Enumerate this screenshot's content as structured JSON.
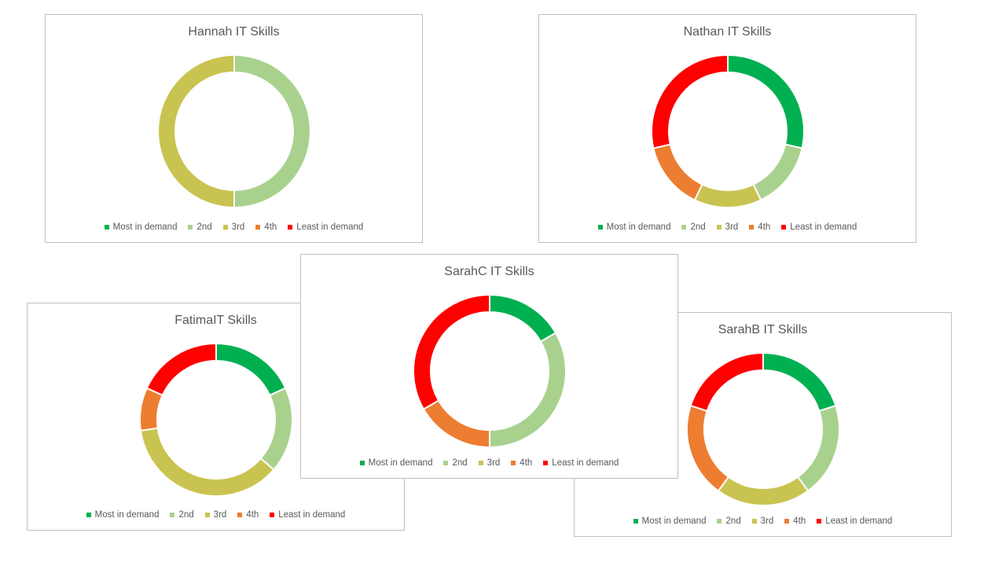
{
  "chart_data": [
    {
      "type": "donut",
      "title": "Hannah IT Skills",
      "categories": [
        "Most in demand",
        "2nd",
        "3rd",
        "4th",
        "Least in demand"
      ],
      "colors": [
        "#00b050",
        "#a9d18e",
        "#c9c351",
        "#ed7d31",
        "#ff0000"
      ],
      "values": [
        0,
        1,
        1,
        0,
        0
      ],
      "legend": "bottom"
    },
    {
      "type": "donut",
      "title": "Nathan IT Skills",
      "categories": [
        "Most in demand",
        "2nd",
        "3rd",
        "4th",
        "Least in demand"
      ],
      "colors": [
        "#00b050",
        "#a9d18e",
        "#c9c351",
        "#ed7d31",
        "#ff0000"
      ],
      "values": [
        2,
        1,
        1,
        1,
        2
      ],
      "legend": "bottom"
    },
    {
      "type": "donut",
      "title": "FatimaIT Skills",
      "categories": [
        "Most in demand",
        "2nd",
        "3rd",
        "4th",
        "Least in demand"
      ],
      "colors": [
        "#00b050",
        "#a9d18e",
        "#c9c351",
        "#ed7d31",
        "#ff0000"
      ],
      "values": [
        2,
        2,
        4,
        1,
        2
      ],
      "legend": "bottom"
    },
    {
      "type": "donut",
      "title": "SarahC IT Skills",
      "categories": [
        "Most in demand",
        "2nd",
        "3rd",
        "4th",
        "Least in demand"
      ],
      "colors": [
        "#00b050",
        "#a9d18e",
        "#c9c351",
        "#ed7d31",
        "#ff0000"
      ],
      "values": [
        1,
        2,
        0,
        1,
        2
      ],
      "legend": "bottom"
    },
    {
      "type": "donut",
      "title": "SarahB IT Skills",
      "categories": [
        "Most in demand",
        "2nd",
        "3rd",
        "4th",
        "Least in demand"
      ],
      "colors": [
        "#00b050",
        "#a9d18e",
        "#c9c351",
        "#ed7d31",
        "#ff0000"
      ],
      "values": [
        1,
        1,
        1,
        1,
        1
      ],
      "legend": "bottom"
    }
  ]
}
